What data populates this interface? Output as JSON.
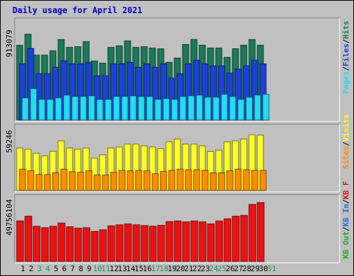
{
  "header": {
    "title": "Daily usage for April 2021"
  },
  "colors": {
    "title": "#0000cc",
    "hits": "#1a7a5a",
    "files": "#1f3fd8",
    "pages": "#22ddee",
    "visits": "#ffff22",
    "sites": "#ff8c00",
    "kb_out": "#22aa22",
    "kb_in": "#1e6fe0",
    "kb_f": "#ee1111",
    "weekend_label": "#2a8a5a"
  },
  "chart_data": [
    {
      "type": "bar",
      "panel": "hits-files-pages",
      "max_label": "913079",
      "legend": [
        {
          "label": "Hits",
          "color_key": "hits"
        },
        {
          "label": "Files",
          "color_key": "files"
        },
        {
          "label": "Pages",
          "color_key": "pages"
        }
      ],
      "legend_separator": "/",
      "categories": [
        "1",
        "2",
        "3",
        "4",
        "5",
        "6",
        "7",
        "8",
        "9",
        "10",
        "11",
        "12",
        "13",
        "14",
        "15",
        "16",
        "17",
        "18",
        "19",
        "20",
        "21",
        "22",
        "23",
        "24",
        "25",
        "26",
        "27",
        "28",
        "29",
        "30",
        "31"
      ],
      "ylim": [
        0,
        913079
      ],
      "series": [
        {
          "name": "Hits",
          "color_key": "hits",
          "values": [
            750000,
            861000,
            651000,
            651000,
            694000,
            808000,
            729000,
            736000,
            787000,
            593000,
            571000,
            729000,
            744000,
            794000,
            729000,
            736000,
            722000,
            715000,
            579000,
            622000,
            758000,
            808000,
            751000,
            722000,
            722000,
            629000,
            715000,
            751000,
            808000,
            751000,
            null
          ]
        },
        {
          "name": "Files",
          "color_key": "files",
          "values": [
            565000,
            718000,
            465000,
            465000,
            529000,
            594000,
            565000,
            565000,
            579000,
            444000,
            444000,
            565000,
            565000,
            579000,
            529000,
            565000,
            529000,
            565000,
            422000,
            465000,
            565000,
            601000,
            565000,
            544000,
            544000,
            472000,
            511000,
            544000,
            601000,
            565000,
            null
          ]
        },
        {
          "name": "Pages",
          "color_key": "pages",
          "values": [
            222000,
            315000,
            207000,
            207000,
            222000,
            250000,
            236000,
            236000,
            243000,
            207000,
            207000,
            236000,
            236000,
            243000,
            236000,
            236000,
            207000,
            215000,
            207000,
            236000,
            243000,
            250000,
            229000,
            229000,
            258000,
            236000,
            207000,
            229000,
            250000,
            258000,
            null
          ]
        }
      ]
    },
    {
      "type": "bar",
      "panel": "visits-sites",
      "max_label": "59246",
      "legend": [
        {
          "label": "Visits",
          "color_key": "visits"
        },
        {
          "label": "Sites",
          "color_key": "sites"
        }
      ],
      "legend_separator": "/",
      "categories": [
        "1",
        "2",
        "3",
        "4",
        "5",
        "6",
        "7",
        "8",
        "9",
        "10",
        "11",
        "12",
        "13",
        "14",
        "15",
        "16",
        "17",
        "18",
        "19",
        "20",
        "21",
        "22",
        "23",
        "24",
        "25",
        "26",
        "27",
        "28",
        "29",
        "30",
        "31"
      ],
      "ylim": [
        0,
        59246
      ],
      "series": [
        {
          "name": "Visits",
          "color_key": "visits",
          "values": [
            42200,
            41100,
            37000,
            34400,
            39000,
            49400,
            42200,
            41100,
            42200,
            32200,
            35500,
            42200,
            43300,
            46100,
            46100,
            44400,
            43300,
            41600,
            48300,
            51100,
            46100,
            46100,
            44400,
            38900,
            40000,
            48300,
            49400,
            51100,
            55500,
            55000,
            null
          ]
        },
        {
          "name": "Sites",
          "color_key": "sites",
          "values": [
            21200,
            19500,
            15900,
            15900,
            17600,
            21200,
            18700,
            18100,
            19500,
            15300,
            15300,
            18100,
            20000,
            19500,
            20000,
            19500,
            16700,
            19000,
            20000,
            21200,
            20600,
            20600,
            20000,
            17600,
            17600,
            19500,
            21200,
            20600,
            20000,
            20000,
            null
          ]
        }
      ]
    },
    {
      "type": "bar",
      "panel": "kbf-kbin-kbout",
      "max_label": "49756104",
      "legend": [
        {
          "label": "KB F",
          "color_key": "kb_f"
        },
        {
          "label": "KB In",
          "color_key": "kb_in"
        },
        {
          "label": "KB Out",
          "color_key": "kb_out"
        }
      ],
      "legend_separator": "/",
      "categories": [
        "1",
        "2",
        "3",
        "4",
        "5",
        "6",
        "7",
        "8",
        "9",
        "10",
        "11",
        "12",
        "13",
        "14",
        "15",
        "16",
        "17",
        "18",
        "19",
        "20",
        "21",
        "22",
        "23",
        "24",
        "25",
        "26",
        "27",
        "28",
        "29",
        "30",
        "31"
      ],
      "ylim": [
        0,
        49756104
      ],
      "series": [
        {
          "name": "KB F",
          "color_key": "kb_f",
          "values": [
            33600000,
            37600000,
            29200000,
            28000000,
            29200000,
            31900000,
            28800000,
            27600000,
            28000000,
            25000000,
            26300000,
            29600000,
            30400000,
            31200000,
            30400000,
            29800000,
            29200000,
            30000000,
            33100000,
            33600000,
            32800000,
            33600000,
            32800000,
            31200000,
            33600000,
            35400000,
            37600000,
            38200000,
            47300000,
            48800000,
            null
          ]
        }
      ]
    }
  ]
}
